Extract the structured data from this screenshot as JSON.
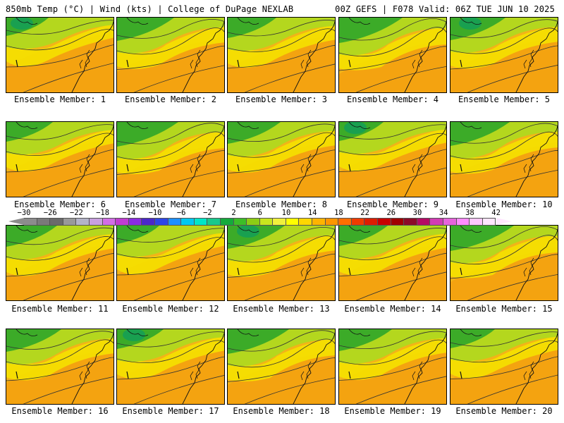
{
  "header": {
    "title_left": "850mb Temp (°C) | Wind (kts) | College of DuPage NEXLAB",
    "title_right": "00Z GEFS | F078 Valid: 06Z TUE JUN 10 2025"
  },
  "caption_prefix": "Ensemble Member: ",
  "panels": [
    {
      "member": "1",
      "caption": "Ensemble Member: 1"
    },
    {
      "member": "2",
      "caption": "Ensemble Member: 2"
    },
    {
      "member": "3",
      "caption": "Ensemble Member: 3"
    },
    {
      "member": "4",
      "caption": "Ensemble Member: 4"
    },
    {
      "member": "5",
      "caption": "Ensemble Member: 5"
    },
    {
      "member": "6",
      "caption": "Ensemble Member: 6"
    },
    {
      "member": "7",
      "caption": "Ensemble Member: 7"
    },
    {
      "member": "8",
      "caption": "Ensemble Member: 8"
    },
    {
      "member": "9",
      "caption": "Ensemble Member: 9"
    },
    {
      "member": "10",
      "caption": "Ensemble Member: 10"
    },
    {
      "member": "11",
      "caption": "Ensemble Member: 11"
    },
    {
      "member": "12",
      "caption": "Ensemble Member: 12"
    },
    {
      "member": "13",
      "caption": "Ensemble Member: 13"
    },
    {
      "member": "14",
      "caption": "Ensemble Member: 14"
    },
    {
      "member": "15",
      "caption": "Ensemble Member: 15"
    },
    {
      "member": "16",
      "caption": "Ensemble Member: 16"
    },
    {
      "member": "17",
      "caption": "Ensemble Member: 17"
    },
    {
      "member": "18",
      "caption": "Ensemble Member: 18"
    },
    {
      "member": "19",
      "caption": "Ensemble Member: 19"
    },
    {
      "member": "20",
      "caption": "Ensemble Member: 20"
    }
  ],
  "colorbar": {
    "labels": [
      "−30",
      "−26",
      "−22",
      "−18",
      "−14",
      "−10",
      "−6",
      "−2",
      "2",
      "6",
      "10",
      "14",
      "18",
      "22",
      "26",
      "30",
      "34",
      "38",
      "42"
    ],
    "colors": [
      "#8c8c8c",
      "#7a7a7a",
      "#6b6b6b",
      "#999999",
      "#b3b3c8",
      "#c8a0e0",
      "#d26ee6",
      "#c03cd2",
      "#8a2be2",
      "#4b28c8",
      "#2d46e6",
      "#1e90ff",
      "#00c8f0",
      "#00e6c8",
      "#19c88c",
      "#14aa3c",
      "#3cbe28",
      "#8ccd14",
      "#c8e61e",
      "#f0f03c",
      "#ffff00",
      "#ffd700",
      "#ffb400",
      "#ff9600",
      "#ff6e00",
      "#f03c00",
      "#dc1e00",
      "#c80000",
      "#a00000",
      "#8c0a28",
      "#b40a64",
      "#d23cb4",
      "#e664dc",
      "#ff8cff",
      "#ffc8ff",
      "#ffe6ff"
    ]
  }
}
